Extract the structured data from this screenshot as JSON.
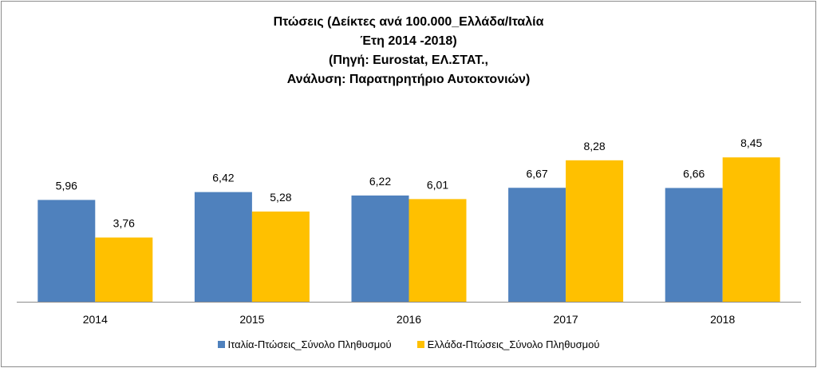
{
  "colors": {
    "italy": "#4f81bd",
    "greece": "#ffc000",
    "axis": "#8c8c8c"
  },
  "chart_data": {
    "type": "bar",
    "title_lines": [
      "Πτώσεις (Δείκτες ανά 100.000_Ελλάδα/Ιταλία",
      "Έτη 2014 -2018)",
      "(Πηγή: Eurostat, ΕΛ.ΣΤΑΤ.,",
      "Ανάλυση: Παρατηρητήριο Αυτοκτονιών)"
    ],
    "categories": [
      "2014",
      "2015",
      "2016",
      "2017",
      "2018"
    ],
    "series": [
      {
        "name": "Ιταλία-Πτώσεις_Σύνολο Πληθυσμού",
        "color": "#4f81bd",
        "values": [
          5.96,
          6.42,
          6.22,
          6.67,
          6.66
        ],
        "labels": [
          "5,96",
          "6,42",
          "6,22",
          "6,67",
          "6,66"
        ]
      },
      {
        "name": "Ελλάδα-Πτώσεις_Σύνολο Πληθυσμού",
        "color": "#ffc000",
        "values": [
          3.76,
          5.28,
          6.01,
          8.28,
          8.45
        ],
        "labels": [
          "3,76",
          "5,28",
          "6,01",
          "8,28",
          "8,45"
        ]
      }
    ],
    "ylim": [
      0,
      10
    ],
    "grid": false,
    "legend_position": "bottom",
    "xlabel": "",
    "ylabel": ""
  }
}
